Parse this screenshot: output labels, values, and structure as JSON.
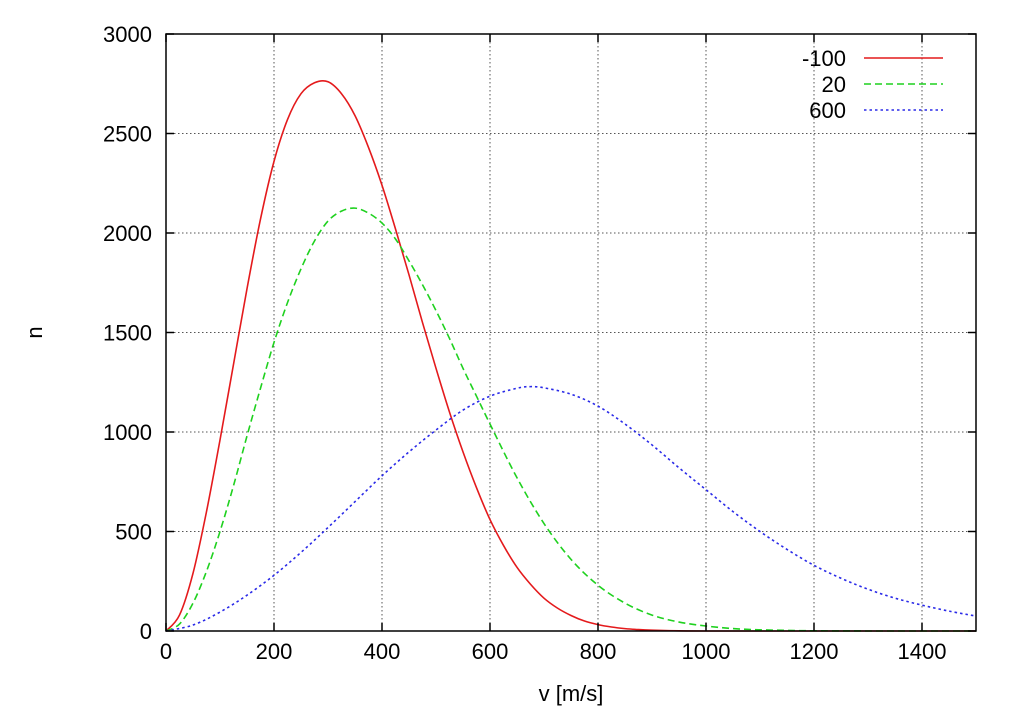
{
  "chart_data": {
    "type": "line",
    "title": "",
    "xlabel": "v [m/s]",
    "ylabel": "n",
    "xlim": [
      0,
      1500
    ],
    "ylim": [
      0,
      3000
    ],
    "xticks": [
      0,
      200,
      400,
      600,
      800,
      1000,
      1200,
      1400
    ],
    "yticks": [
      0,
      500,
      1000,
      1500,
      2000,
      2500,
      3000
    ],
    "grid": true,
    "legend_position": "top-right",
    "series": [
      {
        "name": "-100",
        "color": "#e41a1c",
        "dash": "solid",
        "x": [
          0,
          25,
          50,
          75,
          100,
          125,
          150,
          175,
          200,
          225,
          250,
          275,
          300,
          325,
          350,
          375,
          400,
          425,
          450,
          475,
          500,
          525,
          550,
          575,
          600,
          625,
          650,
          675,
          700,
          725,
          750,
          775,
          800,
          825,
          850,
          875,
          900,
          950,
          1000,
          1100,
          1200,
          1300,
          1400,
          1500
        ],
        "y": [
          0,
          80,
          290,
          600,
          960,
          1340,
          1720,
          2070,
          2360,
          2570,
          2700,
          2755,
          2760,
          2700,
          2590,
          2430,
          2240,
          2020,
          1790,
          1550,
          1320,
          1100,
          900,
          720,
          560,
          430,
          320,
          235,
          165,
          115,
          78,
          50,
          32,
          20,
          12,
          7,
          4,
          1,
          0,
          0,
          0,
          0,
          0,
          0
        ]
      },
      {
        "name": "20",
        "color": "#1fd11f",
        "dash": "dashed",
        "x": [
          0,
          25,
          50,
          75,
          100,
          125,
          150,
          175,
          200,
          225,
          250,
          275,
          300,
          325,
          350,
          375,
          400,
          425,
          450,
          475,
          500,
          525,
          550,
          575,
          600,
          650,
          700,
          750,
          800,
          850,
          900,
          950,
          1000,
          1050,
          1100,
          1150,
          1200,
          1300,
          1400,
          1500
        ],
        "y": [
          0,
          35,
          140,
          300,
          500,
          730,
          980,
          1220,
          1450,
          1650,
          1820,
          1960,
          2060,
          2110,
          2125,
          2100,
          2050,
          1970,
          1860,
          1740,
          1610,
          1470,
          1320,
          1180,
          1040,
          770,
          540,
          360,
          230,
          140,
          80,
          45,
          25,
          12,
          6,
          3,
          1,
          0,
          0,
          0
        ]
      },
      {
        "name": "600",
        "color": "#2a2ae8",
        "dash": "dotted",
        "x": [
          0,
          50,
          100,
          150,
          200,
          250,
          300,
          350,
          400,
          450,
          500,
          550,
          600,
          650,
          675,
          700,
          750,
          800,
          850,
          900,
          950,
          1000,
          1050,
          1100,
          1150,
          1200,
          1250,
          1300,
          1350,
          1400,
          1450,
          1500
        ],
        "y": [
          0,
          30,
          95,
          180,
          280,
          395,
          520,
          650,
          780,
          900,
          1010,
          1110,
          1180,
          1220,
          1228,
          1222,
          1190,
          1130,
          1040,
          935,
          820,
          710,
          600,
          500,
          410,
          330,
          265,
          210,
          165,
          130,
          100,
          75
        ]
      }
    ]
  }
}
